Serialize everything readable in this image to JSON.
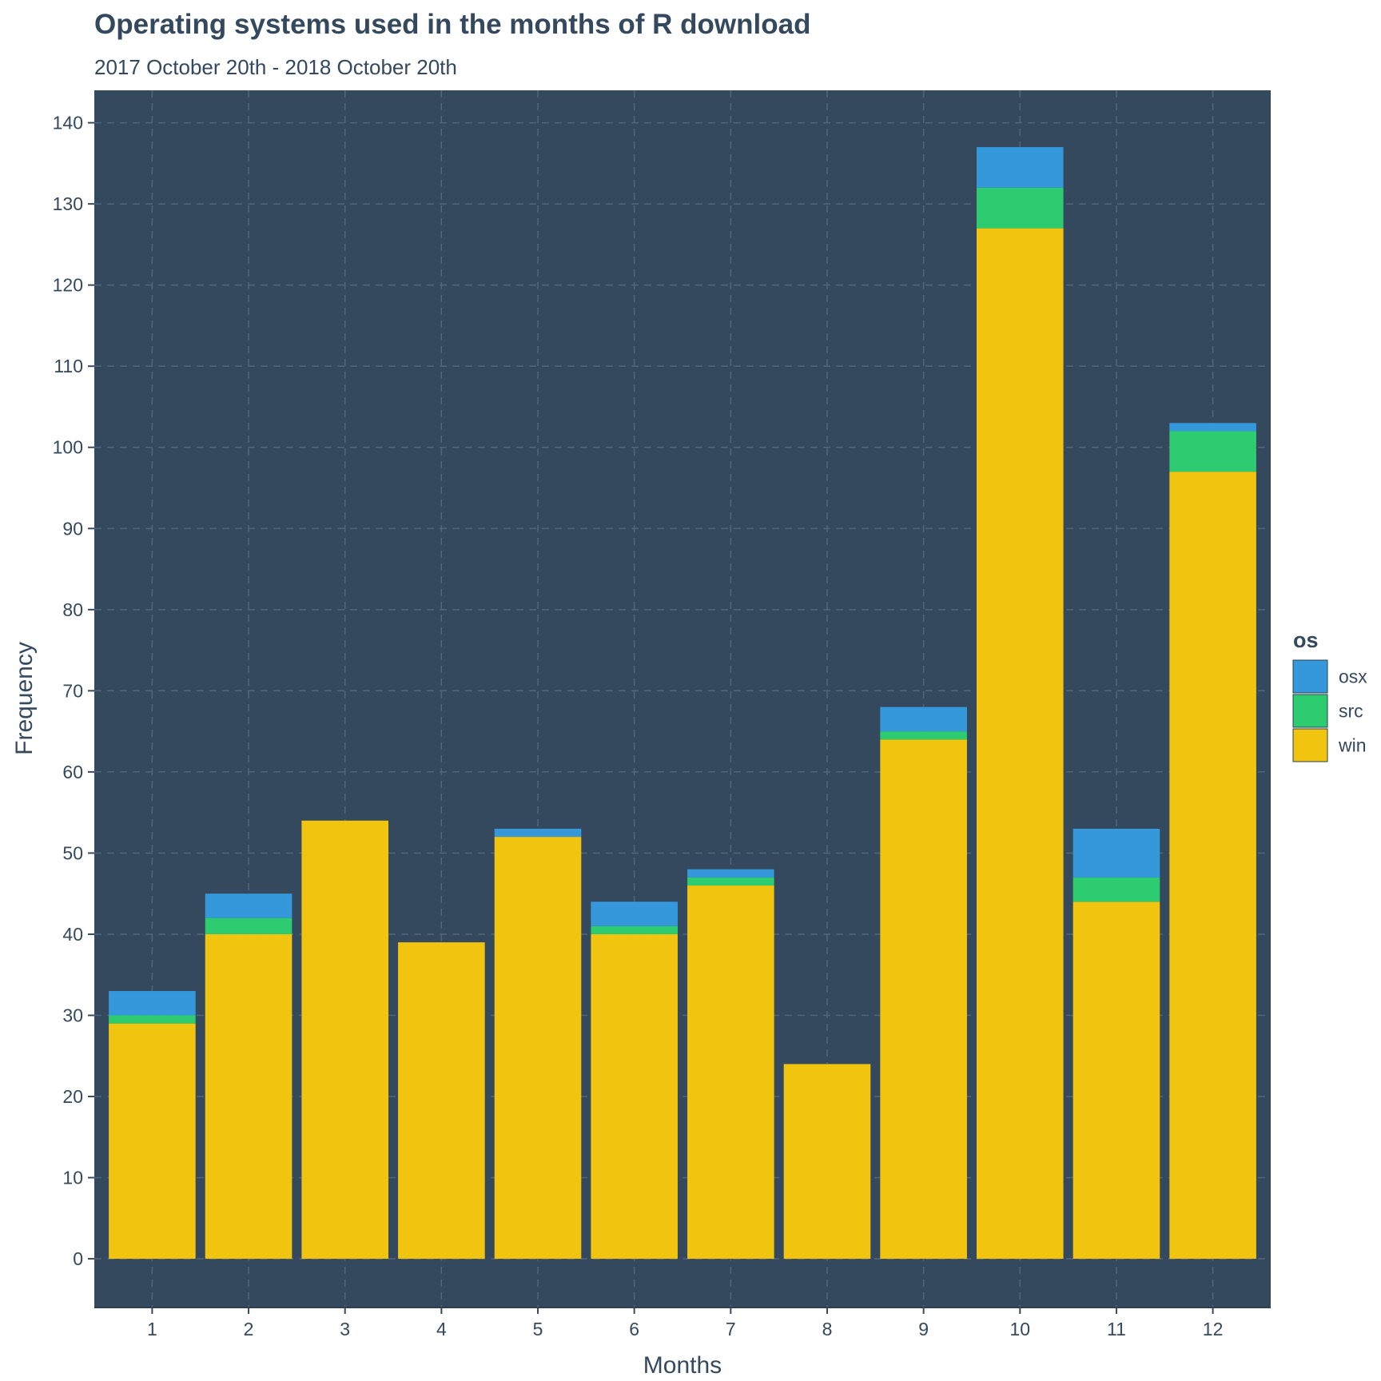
{
  "chart_data": {
    "type": "bar",
    "stacked": true,
    "title": "Operating systems used in the months of R download",
    "subtitle": "2017 October 20th - 2018 October 20th",
    "xlabel": "Months",
    "ylabel": "Frequency",
    "categories": [
      "1",
      "2",
      "3",
      "4",
      "5",
      "6",
      "7",
      "8",
      "9",
      "10",
      "11",
      "12"
    ],
    "series": [
      {
        "name": "win",
        "color": "#f1c40f",
        "values": [
          29,
          40,
          54,
          39,
          52,
          40,
          46,
          24,
          64,
          127,
          44,
          97
        ]
      },
      {
        "name": "src",
        "color": "#2ecc71",
        "values": [
          1,
          2,
          0,
          0,
          0,
          1,
          1,
          0,
          1,
          5,
          3,
          5
        ]
      },
      {
        "name": "osx",
        "color": "#3498db",
        "values": [
          3,
          3,
          0,
          0,
          1,
          3,
          1,
          0,
          3,
          5,
          6,
          1
        ]
      }
    ],
    "ylim": [
      -6,
      144
    ],
    "yticks": [
      0,
      10,
      20,
      30,
      40,
      50,
      60,
      70,
      80,
      90,
      100,
      110,
      120,
      130,
      140
    ],
    "grid": true,
    "panel_background": "#34495e",
    "legend": {
      "title": "os",
      "position": "right",
      "order": [
        "osx",
        "src",
        "win"
      ]
    }
  }
}
